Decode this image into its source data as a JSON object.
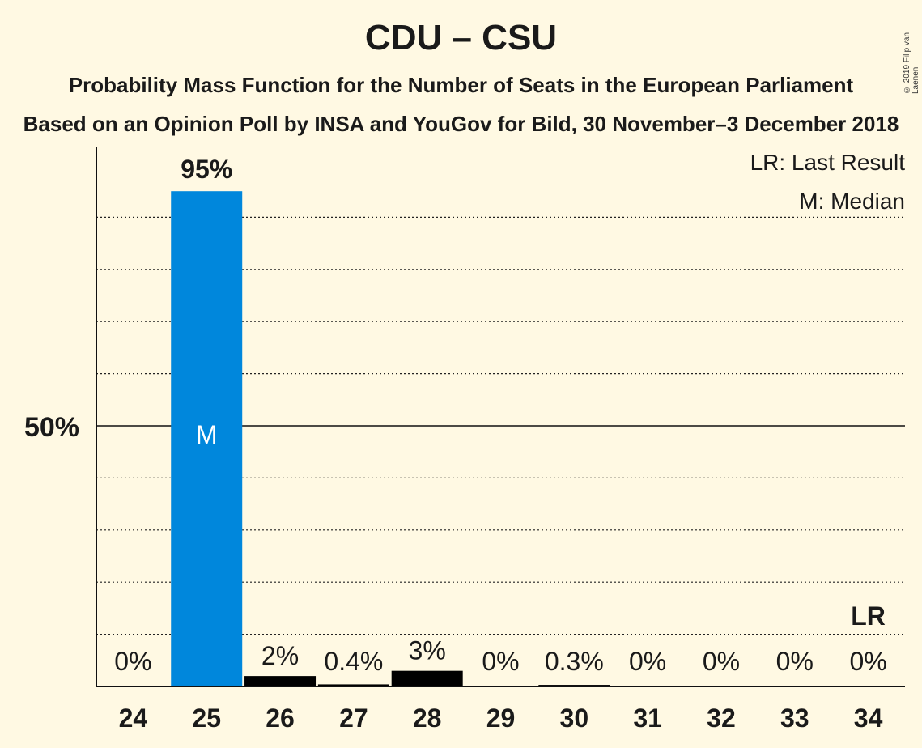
{
  "title": "CDU – CSU",
  "subtitle_1": "Probability Mass Function for the Number of Seats in the European Parliament",
  "subtitle_2": "Based on an Opinion Poll by INSA and YouGov for Bild, 30 November–3 December 2018",
  "copyright": "© 2019 Filip van Laenen",
  "legend": {
    "last_result": "LR: Last Result",
    "median": "M: Median"
  },
  "colors": {
    "background": "#FFF9E3",
    "party": "#0087DC",
    "other": "#000000"
  },
  "chart_data": {
    "type": "bar",
    "categories": [
      "24",
      "25",
      "26",
      "27",
      "28",
      "29",
      "30",
      "31",
      "32",
      "33",
      "34"
    ],
    "values": [
      0,
      95,
      2,
      0.4,
      3,
      0,
      0.3,
      0,
      0,
      0,
      0
    ],
    "data_labels": [
      "0%",
      "95%",
      "2%",
      "0.4%",
      "3%",
      "0%",
      "0.3%",
      "0%",
      "0%",
      "0%",
      "0%"
    ],
    "median_seat": "25",
    "median_marker": "M",
    "last_result_seat": "34",
    "last_result_marker": "LR",
    "ytick_label": "50%",
    "ylim": [
      0,
      100
    ],
    "gridlines": "dotted every 10%",
    "legend_position": "top-right"
  }
}
